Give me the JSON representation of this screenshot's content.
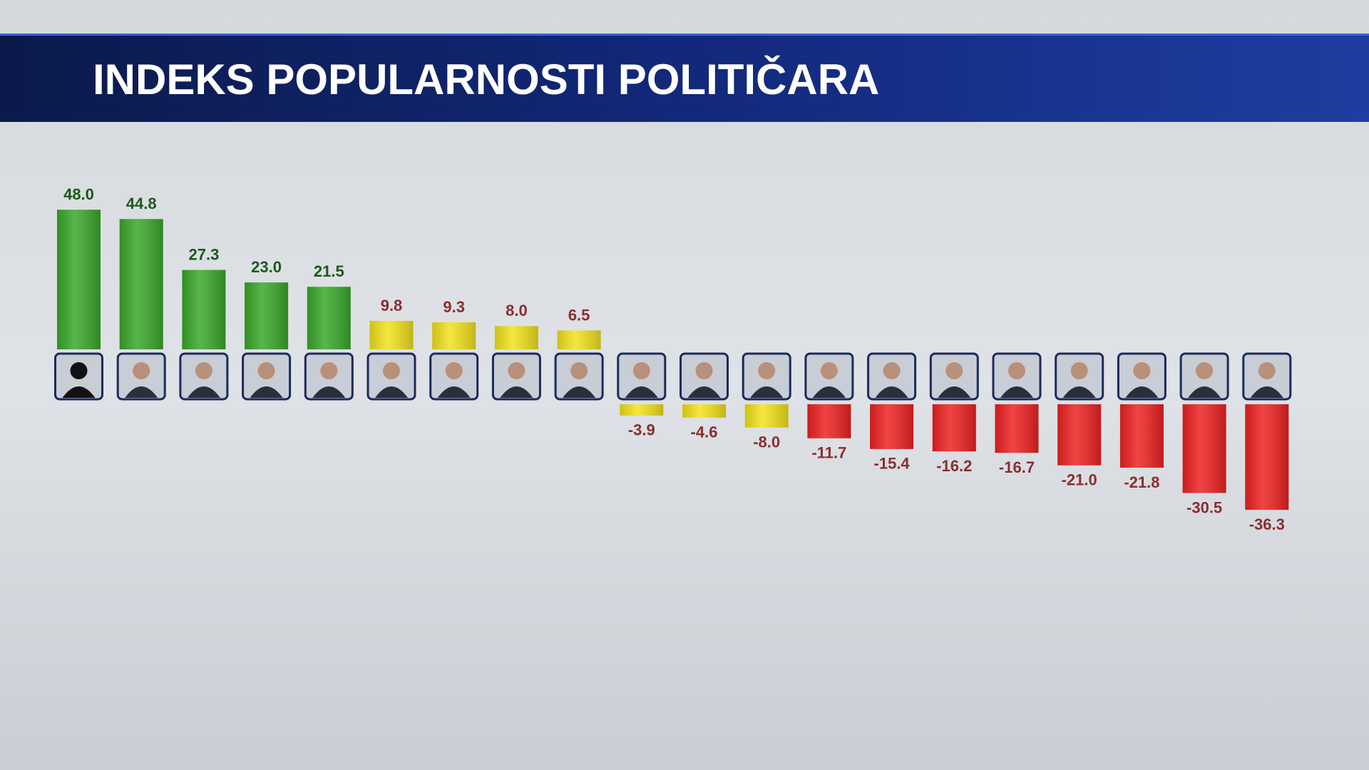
{
  "chart_data": {
    "type": "bar",
    "title": "INDEKS POPULARNOSTI POLITIČARA",
    "values": [
      48.0,
      44.8,
      27.3,
      23.0,
      21.5,
      9.8,
      9.3,
      8.0,
      6.5,
      -3.9,
      -4.6,
      -8.0,
      -11.7,
      -15.4,
      -16.2,
      -16.7,
      -21.0,
      -21.8,
      -30.5,
      -36.3
    ],
    "value_labels": [
      "48.0",
      "44.8",
      "27.3",
      "23.0",
      "21.5",
      "9.8",
      "9.3",
      "8.0",
      "6.5",
      "-3.9",
      "-4.6",
      "-8.0",
      "-11.7",
      "-15.4",
      "-16.2",
      "-16.7",
      "-21.0",
      "-21.8",
      "-30.5",
      "-36.3"
    ],
    "colors": [
      "#3aa82a",
      "#3aa82a",
      "#3aa82a",
      "#3aa82a",
      "#3aa82a",
      "#f2e21c",
      "#f2e21c",
      "#f2e21c",
      "#f2e21c",
      "#f2e21c",
      "#f2e21c",
      "#f2e21c",
      "#ee2222",
      "#ee2222",
      "#ee2222",
      "#ee2222",
      "#ee2222",
      "#ee2222",
      "#ee2222",
      "#ee2222"
    ]
  }
}
